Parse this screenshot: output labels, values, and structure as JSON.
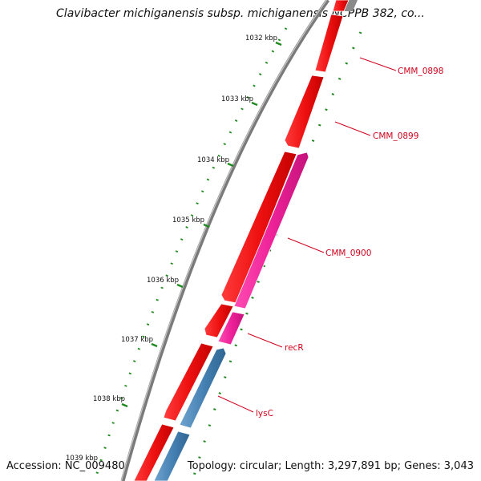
{
  "title": "Clavibacter michiganensis subsp. michiganensis NCPPB 382, co...",
  "footer": {
    "accession": "Accession: NC_009480",
    "summary": "Topology: circular; Length: 3,297,891 bp; Genes: 3,043"
  },
  "colors": {
    "background": "#ffffff",
    "backbone": "#7a7a7a",
    "tick": "#1f8a1f",
    "gene_red": "#ee1111",
    "gene_pink": "#ee2299",
    "gene_blue": "#4682b4",
    "label": "#d0021b"
  },
  "scale": {
    "unit": "kbp",
    "ticks": [
      {
        "label": "1032 kbp"
      },
      {
        "label": "1033 kbp"
      },
      {
        "label": "1034 kbp"
      },
      {
        "label": "1035 kbp"
      },
      {
        "label": "1036 kbp"
      },
      {
        "label": "1037 kbp"
      },
      {
        "label": "1038 kbp"
      },
      {
        "label": "1039 kbp"
      }
    ]
  },
  "gene_labels": [
    "CMM_0898",
    "CMM_0899",
    "CMM_0900",
    "recR",
    "lysC"
  ]
}
